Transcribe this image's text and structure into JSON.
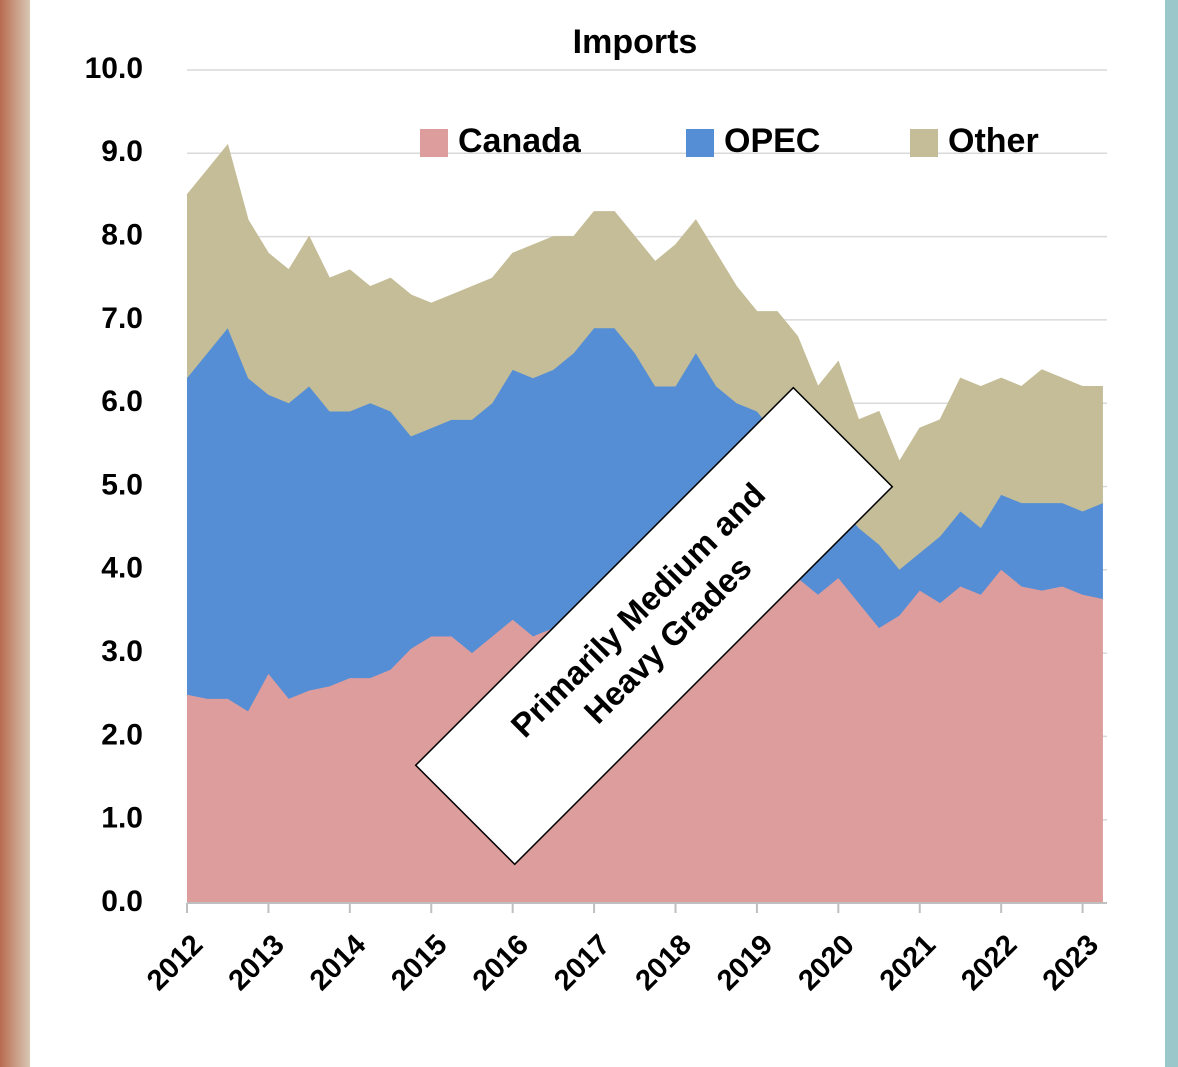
{
  "chart_data": {
    "type": "stacked_area",
    "title": "Imports",
    "x": [
      2012,
      2012.25,
      2012.5,
      2012.75,
      2013,
      2013.25,
      2013.5,
      2013.75,
      2014,
      2014.25,
      2014.5,
      2014.75,
      2015,
      2015.25,
      2015.5,
      2015.75,
      2016,
      2016.25,
      2016.5,
      2016.75,
      2017,
      2017.25,
      2017.5,
      2017.75,
      2018,
      2018.25,
      2018.5,
      2018.75,
      2019,
      2019.25,
      2019.5,
      2019.75,
      2020,
      2020.25,
      2020.5,
      2020.75,
      2021,
      2021.25,
      2021.5,
      2021.75,
      2022,
      2022.25,
      2022.5,
      2022.75,
      2023,
      2023.25
    ],
    "series": [
      {
        "name": "Canada",
        "color": "#de9d9d",
        "values": [
          2.5,
          2.45,
          2.45,
          2.3,
          2.75,
          2.45,
          2.55,
          2.6,
          2.7,
          2.7,
          2.8,
          3.05,
          3.2,
          3.2,
          3.0,
          3.2,
          3.4,
          3.2,
          3.3,
          3.4,
          3.5,
          3.4,
          3.5,
          3.5,
          3.6,
          3.6,
          3.7,
          3.8,
          3.8,
          3.8,
          3.9,
          3.7,
          3.9,
          3.6,
          3.3,
          3.45,
          3.75,
          3.6,
          3.8,
          3.7,
          4.0,
          3.8,
          3.75,
          3.8,
          3.7,
          3.65
        ]
      },
      {
        "name": "OPEC",
        "color": "#558ed5",
        "values": [
          3.8,
          4.15,
          4.45,
          4.0,
          3.35,
          3.55,
          3.65,
          3.3,
          3.2,
          3.3,
          3.1,
          2.55,
          2.5,
          2.6,
          2.8,
          2.8,
          3.0,
          3.1,
          3.1,
          3.2,
          3.4,
          3.5,
          3.1,
          2.7,
          2.6,
          3.0,
          2.5,
          2.2,
          2.1,
          1.8,
          1.5,
          1.2,
          0.9,
          0.9,
          1.0,
          0.55,
          0.45,
          0.8,
          0.9,
          0.8,
          0.9,
          1.0,
          1.05,
          1.0,
          1.0,
          1.15
        ]
      },
      {
        "name": "Other",
        "color": "#c4bd97",
        "values": [
          2.2,
          2.2,
          2.2,
          1.9,
          1.7,
          1.6,
          1.8,
          1.6,
          1.7,
          1.4,
          1.6,
          1.7,
          1.5,
          1.5,
          1.6,
          1.5,
          1.4,
          1.6,
          1.6,
          1.4,
          1.4,
          1.4,
          1.4,
          1.5,
          1.7,
          1.6,
          1.6,
          1.4,
          1.2,
          1.5,
          1.4,
          1.3,
          1.7,
          1.3,
          1.6,
          1.3,
          1.5,
          1.4,
          1.6,
          1.7,
          1.4,
          1.4,
          1.6,
          1.5,
          1.5,
          1.4
        ]
      }
    ],
    "xlim": [
      2012,
      2023.3
    ],
    "xticks": [
      2012,
      2013,
      2014,
      2015,
      2016,
      2017,
      2018,
      2019,
      2020,
      2021,
      2022,
      2023
    ],
    "ylim": [
      0,
      10
    ],
    "yticks": [
      {
        "value": 0,
        "label": "0.0"
      },
      {
        "value": 1,
        "label": "1.0"
      },
      {
        "value": 2,
        "label": "2.0"
      },
      {
        "value": 3,
        "label": "3.0"
      },
      {
        "value": 4,
        "label": "4.0"
      },
      {
        "value": 5,
        "label": "5.0"
      },
      {
        "value": 6,
        "label": "6.0"
      },
      {
        "value": 7,
        "label": "7.0"
      },
      {
        "value": 8,
        "label": "8.0"
      },
      {
        "value": 9,
        "label": "9.0"
      },
      {
        "value": 10,
        "label": "10.0"
      }
    ],
    "grid": true,
    "legend": "top",
    "annotations": [
      "Primarily Medium and",
      "Heavy Grades"
    ]
  }
}
